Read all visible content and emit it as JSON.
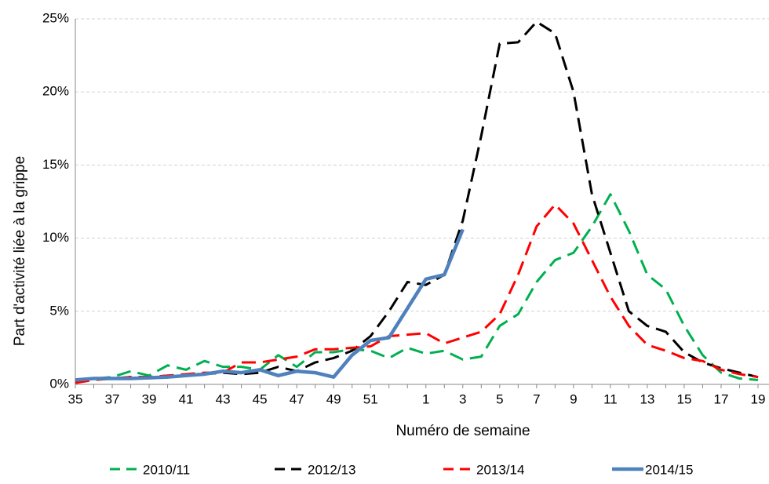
{
  "chart_data": {
    "type": "line",
    "y_label": "Part d'activité liée à la grippe",
    "x_label": "Numéro de semaine",
    "categories": [
      "35",
      null,
      "37",
      null,
      "39",
      null,
      "41",
      null,
      "43",
      null,
      "45",
      null,
      "47",
      null,
      "49",
      null,
      "51",
      null,
      null,
      "1",
      null,
      "3",
      null,
      "5",
      null,
      "7",
      null,
      "9",
      null,
      "11",
      null,
      "13",
      null,
      "15",
      null,
      "17",
      null,
      "19"
    ],
    "ylim": [
      0,
      25
    ],
    "yticks": [
      {
        "value": 0,
        "label": "0%"
      },
      {
        "value": 5,
        "label": "5%"
      },
      {
        "value": 10,
        "label": "10%"
      },
      {
        "value": 15,
        "label": "15%"
      },
      {
        "value": 20,
        "label": "20%"
      },
      {
        "value": 25,
        "label": "25%"
      }
    ],
    "grid": true,
    "series": [
      {
        "name": "2010/11",
        "color": "#00b050",
        "style": "dashed",
        "values": [
          0.2,
          0.4,
          0.5,
          0.9,
          0.6,
          1.3,
          1.0,
          1.6,
          1.2,
          1.2,
          1.0,
          2.0,
          1.2,
          2.2,
          2.2,
          2.4,
          2.3,
          1.8,
          2.5,
          2.1,
          2.3,
          1.7,
          1.9,
          4.0,
          4.8,
          7.0,
          8.5,
          9.0,
          10.8,
          13.0,
          10.5,
          7.5,
          6.5,
          4.0,
          2.0,
          0.8,
          0.4,
          0.3
        ]
      },
      {
        "name": "2012/13",
        "color": "#000000",
        "style": "dashed",
        "values": [
          0.2,
          0.4,
          0.4,
          0.5,
          0.5,
          0.6,
          0.6,
          0.7,
          0.8,
          0.7,
          0.8,
          1.2,
          0.9,
          1.5,
          1.8,
          2.3,
          3.3,
          5.0,
          7.0,
          6.8,
          7.5,
          11.2,
          17.0,
          23.3,
          23.4,
          24.8,
          24.0,
          20.0,
          13.0,
          9.0,
          5.0,
          4.0,
          3.6,
          2.2,
          1.5,
          1.1,
          0.8,
          0.5
        ]
      },
      {
        "name": "2013/14",
        "color": "#ff0000",
        "style": "dashed",
        "values": [
          0.1,
          0.3,
          0.4,
          0.5,
          0.5,
          0.6,
          0.7,
          0.8,
          0.8,
          1.5,
          1.5,
          1.7,
          1.9,
          2.4,
          2.4,
          2.5,
          2.6,
          3.3,
          3.4,
          3.5,
          2.8,
          3.2,
          3.6,
          4.8,
          7.5,
          10.8,
          12.3,
          11.0,
          8.5,
          6.0,
          4.0,
          2.7,
          2.3,
          1.8,
          1.6,
          1.0,
          0.7,
          0.5
        ]
      },
      {
        "name": "2014/15",
        "color": "#4f81bd",
        "style": "solid",
        "values": [
          0.3,
          0.4,
          0.4,
          0.4,
          0.45,
          0.5,
          0.6,
          0.7,
          0.9,
          0.8,
          1.0,
          0.6,
          0.9,
          0.8,
          0.5,
          2.0,
          3.0,
          3.2,
          5.2,
          7.2,
          7.5,
          10.6,
          null,
          null,
          null,
          null,
          null,
          null,
          null,
          null,
          null,
          null,
          null,
          null,
          null,
          null,
          null,
          null
        ]
      }
    ]
  }
}
